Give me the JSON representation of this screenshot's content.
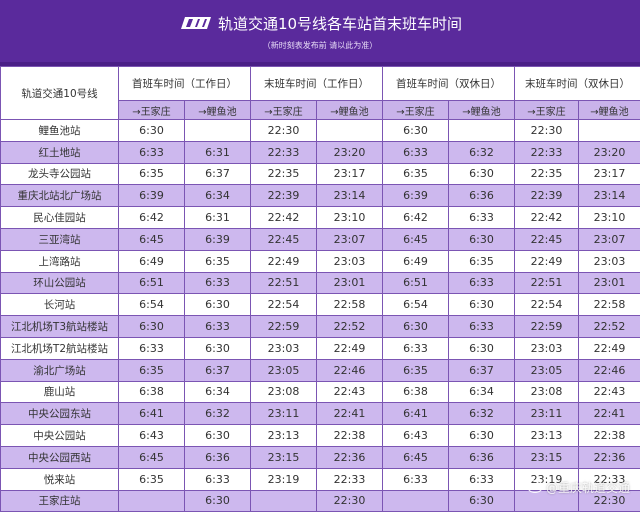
{
  "banner": {
    "logo": "CRT",
    "title": "轨道交通10号线各车站首末班车时间",
    "subtitle": "（新时刻表发布前 请以此为准）"
  },
  "table": {
    "corner_label": "轨道交通10号线",
    "groups": [
      {
        "label": "首班车时间（工作日）"
      },
      {
        "label": "末班车时间（工作日）"
      },
      {
        "label": "首班车时间（双休日）"
      },
      {
        "label": "末班车时间（双休日）"
      }
    ],
    "directions": [
      "→王家庄",
      "→鲤鱼池",
      "→王家庄",
      "→鲤鱼池",
      "→王家庄",
      "→鲤鱼池",
      "→王家庄",
      "→鲤鱼池"
    ],
    "rows": [
      {
        "station": "鲤鱼池站",
        "times": [
          "6:30",
          "",
          "22:30",
          "",
          "6:30",
          "",
          "22:30",
          ""
        ]
      },
      {
        "station": "红土地站",
        "times": [
          "6:33",
          "6:31",
          "22:33",
          "23:20",
          "6:33",
          "6:32",
          "22:33",
          "23:20"
        ]
      },
      {
        "station": "龙头寺公园站",
        "times": [
          "6:35",
          "6:37",
          "22:35",
          "23:17",
          "6:35",
          "6:30",
          "22:35",
          "23:17"
        ]
      },
      {
        "station": "重庆北站北广场站",
        "times": [
          "6:39",
          "6:34",
          "22:39",
          "23:14",
          "6:39",
          "6:36",
          "22:39",
          "23:14"
        ]
      },
      {
        "station": "民心佳园站",
        "times": [
          "6:42",
          "6:31",
          "22:42",
          "23:10",
          "6:42",
          "6:33",
          "22:42",
          "23:10"
        ]
      },
      {
        "station": "三亚湾站",
        "times": [
          "6:45",
          "6:39",
          "22:45",
          "23:07",
          "6:45",
          "6:30",
          "22:45",
          "23:07"
        ]
      },
      {
        "station": "上湾路站",
        "times": [
          "6:49",
          "6:35",
          "22:49",
          "23:03",
          "6:49",
          "6:35",
          "22:49",
          "23:03"
        ]
      },
      {
        "station": "环山公园站",
        "times": [
          "6:51",
          "6:33",
          "22:51",
          "23:01",
          "6:51",
          "6:33",
          "22:51",
          "23:01"
        ]
      },
      {
        "station": "长河站",
        "times": [
          "6:54",
          "6:30",
          "22:54",
          "22:58",
          "6:54",
          "6:30",
          "22:54",
          "22:58"
        ]
      },
      {
        "station": "江北机场T3航站楼站",
        "times": [
          "6:30",
          "6:33",
          "22:59",
          "22:52",
          "6:30",
          "6:33",
          "22:59",
          "22:52"
        ]
      },
      {
        "station": "江北机场T2航站楼站",
        "times": [
          "6:33",
          "6:30",
          "23:03",
          "22:49",
          "6:33",
          "6:30",
          "23:03",
          "22:49"
        ]
      },
      {
        "station": "渝北广场站",
        "times": [
          "6:35",
          "6:37",
          "23:05",
          "22:46",
          "6:35",
          "6:37",
          "23:05",
          "22:46"
        ]
      },
      {
        "station": "鹿山站",
        "times": [
          "6:38",
          "6:34",
          "23:08",
          "22:43",
          "6:38",
          "6:34",
          "23:08",
          "22:43"
        ]
      },
      {
        "station": "中央公园东站",
        "times": [
          "6:41",
          "6:32",
          "23:11",
          "22:41",
          "6:41",
          "6:32",
          "23:11",
          "22:41"
        ]
      },
      {
        "station": "中央公园站",
        "times": [
          "6:43",
          "6:30",
          "23:13",
          "22:38",
          "6:43",
          "6:30",
          "23:13",
          "22:38"
        ]
      },
      {
        "station": "中央公园西站",
        "times": [
          "6:45",
          "6:36",
          "23:15",
          "22:36",
          "6:45",
          "6:36",
          "23:15",
          "22:36"
        ]
      },
      {
        "station": "悦来站",
        "times": [
          "6:35",
          "6:33",
          "23:19",
          "22:33",
          "6:33",
          "6:33",
          "23:19",
          "22:33"
        ]
      },
      {
        "station": "王家庄站",
        "times": [
          "",
          "6:30",
          "",
          "22:30",
          "",
          "6:30",
          "",
          "22:30"
        ]
      }
    ]
  },
  "watermark": "@重庆轨道交通",
  "colors": {
    "banner": "#5a2a9c",
    "row_alt": "#cdb8ee",
    "border": "#7b55b3"
  }
}
